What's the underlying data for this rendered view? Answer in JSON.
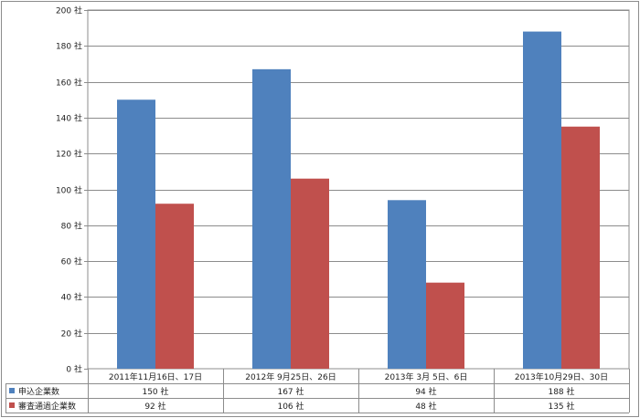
{
  "chart_data": {
    "type": "bar",
    "categories": [
      "2011年11月16日、17日",
      "2012年 9月25日、26日",
      "2013年 3月  5日、6日",
      "2013年10月29日、30日"
    ],
    "series": [
      {
        "name": "申込企業数",
        "values": [
          150,
          167,
          94,
          188
        ],
        "color": "#4f81bd",
        "value_labels": [
          "150 社",
          "167 社",
          "94 社",
          "188 社"
        ]
      },
      {
        "name": "審査通過企業数",
        "values": [
          92,
          106,
          48,
          135
        ],
        "color": "#c0504d",
        "value_labels": [
          "92 社",
          "106 社",
          "48 社",
          "135 社"
        ]
      }
    ],
    "ylim": [
      0,
      200
    ],
    "y_ticks": [
      0,
      20,
      40,
      60,
      80,
      100,
      120,
      140,
      160,
      180,
      200
    ],
    "y_tick_labels": [
      "0 社",
      "20 社",
      "40 社",
      "60 社",
      "80 社",
      "100 社",
      "120 社",
      "140 社",
      "160 社",
      "180 社",
      "200 社"
    ],
    "grid": true,
    "legend": "data-table",
    "title": "",
    "xlabel": "",
    "ylabel": ""
  }
}
